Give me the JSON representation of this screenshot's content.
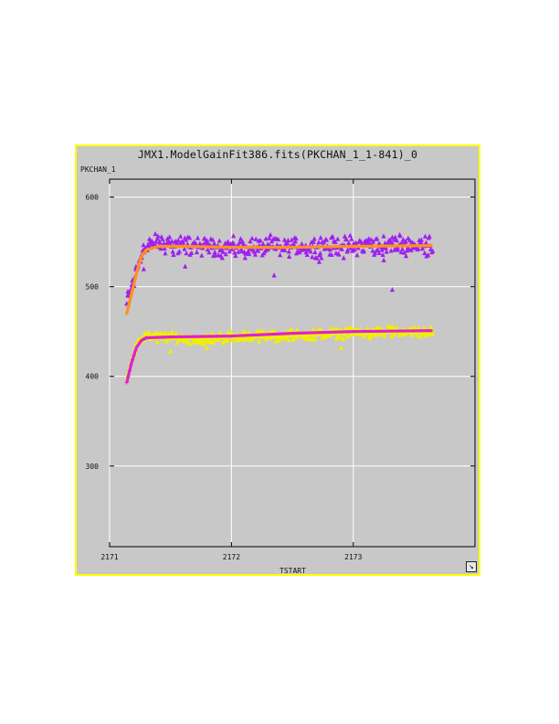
{
  "chart_data": {
    "type": "scatter",
    "title": "JMX1.ModelGainFit386.fits(PKCHAN_1_1-841)_0",
    "xlabel": "TSTART",
    "ylabel": "PKCHAN_1",
    "xlim": [
      2171.0,
      2173.0
    ],
    "ylim": [
      210,
      620
    ],
    "x_ticks": [
      "2171",
      "2172",
      "2173"
    ],
    "y_ticks": [
      "600",
      "500",
      "400",
      "300"
    ],
    "x_tick_values": [
      2171,
      2172,
      2173
    ],
    "y_tick_values": [
      600,
      500,
      400,
      300
    ],
    "grid": true,
    "series": [
      {
        "color": "#a020f0",
        "marker": "triangle",
        "x_range": [
          2171.14,
          2173.65
        ],
        "trend": [
          [
            2171.14,
            482
          ],
          [
            2171.18,
            500
          ],
          [
            2171.22,
            520
          ],
          [
            2171.26,
            538
          ],
          [
            2171.3,
            546
          ],
          [
            2171.4,
            549
          ],
          [
            2171.6,
            547
          ],
          [
            2171.8,
            546
          ],
          [
            2172.0,
            544
          ],
          [
            2172.4,
            545
          ],
          [
            2172.8,
            545
          ],
          [
            2173.2,
            547
          ],
          [
            2173.65,
            547
          ]
        ],
        "scatter": 14,
        "outliers": [
          [
            2173.32,
            497
          ],
          [
            2172.35,
            513
          ],
          [
            2171.28,
            520
          ],
          [
            2171.62,
            523
          ],
          [
            2172.72,
            528
          ],
          [
            2173.25,
            530
          ]
        ]
      },
      {
        "color": "#f0f000",
        "marker": "triangle",
        "x_range": [
          2171.14,
          2173.65
        ],
        "trend": [
          [
            2171.14,
            398
          ],
          [
            2171.18,
            418
          ],
          [
            2171.22,
            432
          ],
          [
            2171.26,
            443
          ],
          [
            2171.3,
            445
          ],
          [
            2171.5,
            444
          ],
          [
            2171.8,
            442
          ],
          [
            2172.0,
            445
          ],
          [
            2172.4,
            446
          ],
          [
            2172.8,
            448
          ],
          [
            2173.2,
            450
          ],
          [
            2173.65,
            450
          ]
        ],
        "scatter": 7,
        "outliers": [
          [
            2171.5,
            428
          ],
          [
            2171.8,
            432
          ],
          [
            2172.9,
            432
          ]
        ]
      },
      {
        "color": "#ff9020",
        "marker": "line",
        "curve": [
          [
            2171.14,
            470
          ],
          [
            2171.18,
            492
          ],
          [
            2171.22,
            515
          ],
          [
            2171.26,
            533
          ],
          [
            2171.3,
            541
          ],
          [
            2171.4,
            545
          ],
          [
            2171.6,
            545
          ],
          [
            2172.0,
            544
          ],
          [
            2172.5,
            544
          ],
          [
            2173.0,
            545
          ],
          [
            2173.65,
            546
          ]
        ]
      },
      {
        "color": "#e020d0",
        "marker": "line",
        "curve": [
          [
            2171.14,
            393
          ],
          [
            2171.18,
            415
          ],
          [
            2171.22,
            432
          ],
          [
            2171.26,
            440
          ],
          [
            2171.3,
            443
          ],
          [
            2171.5,
            444
          ],
          [
            2172.0,
            445
          ],
          [
            2172.5,
            448
          ],
          [
            2173.0,
            450
          ],
          [
            2173.65,
            451
          ]
        ]
      }
    ]
  },
  "window": {
    "resize_icon": "resize-arrow-icon",
    "resize_glyph": "↘",
    "border_color": "#ffff00"
  }
}
